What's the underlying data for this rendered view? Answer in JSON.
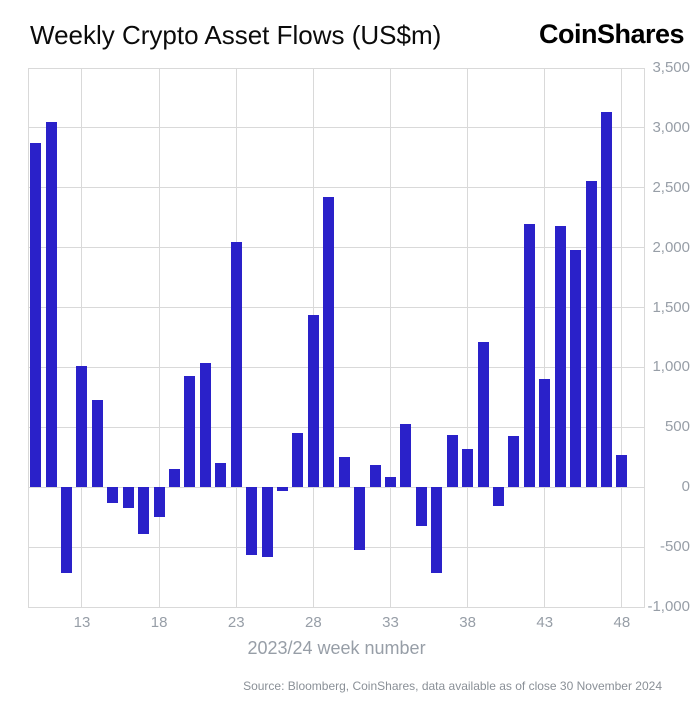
{
  "header": {
    "title": "Weekly Crypto Asset Flows (US$m)",
    "logo": "CoinShares"
  },
  "chart_data": {
    "type": "bar",
    "title": "Weekly Crypto Asset Flows (US$m)",
    "xlabel": "2023/24 week number",
    "ylabel": "",
    "legend_position": "none",
    "grid": true,
    "x": [
      10,
      11,
      12,
      13,
      14,
      15,
      16,
      17,
      18,
      19,
      20,
      21,
      22,
      23,
      24,
      25,
      26,
      27,
      28,
      29,
      30,
      31,
      32,
      33,
      34,
      35,
      36,
      37,
      38,
      39,
      40,
      41,
      42,
      43,
      44,
      45,
      46,
      47,
      48
    ],
    "values": [
      2870,
      3050,
      -720,
      1010,
      730,
      -130,
      -170,
      -390,
      -250,
      150,
      930,
      1040,
      200,
      2050,
      -570,
      -580,
      -30,
      450,
      1440,
      2420,
      250,
      -520,
      185,
      85,
      530,
      -320,
      -720,
      440,
      320,
      1210,
      -160,
      430,
      2200,
      900,
      2180,
      1980,
      2560,
      3130,
      270
    ],
    "ylim": [
      -1000,
      3500
    ],
    "ytick_step": 500,
    "ytick_labels": [
      "-1,000",
      "-500",
      "0",
      "500",
      "1,000",
      "1,500",
      "2,000",
      "2,500",
      "3,000",
      "3,500"
    ],
    "xticks": [
      13,
      18,
      23,
      28,
      33,
      38,
      43,
      48
    ],
    "x_domain": [
      9.5,
      49.5
    ],
    "colors": {
      "bar": "#2a21c9",
      "grid": "#d9d9d9",
      "tick_label": "#979ea7",
      "axis_title": "#979ea7",
      "source_text": "#8a9097"
    }
  },
  "footer": {
    "source": "Source: Bloomberg, CoinShares, data available as of close 30 November 2024"
  }
}
